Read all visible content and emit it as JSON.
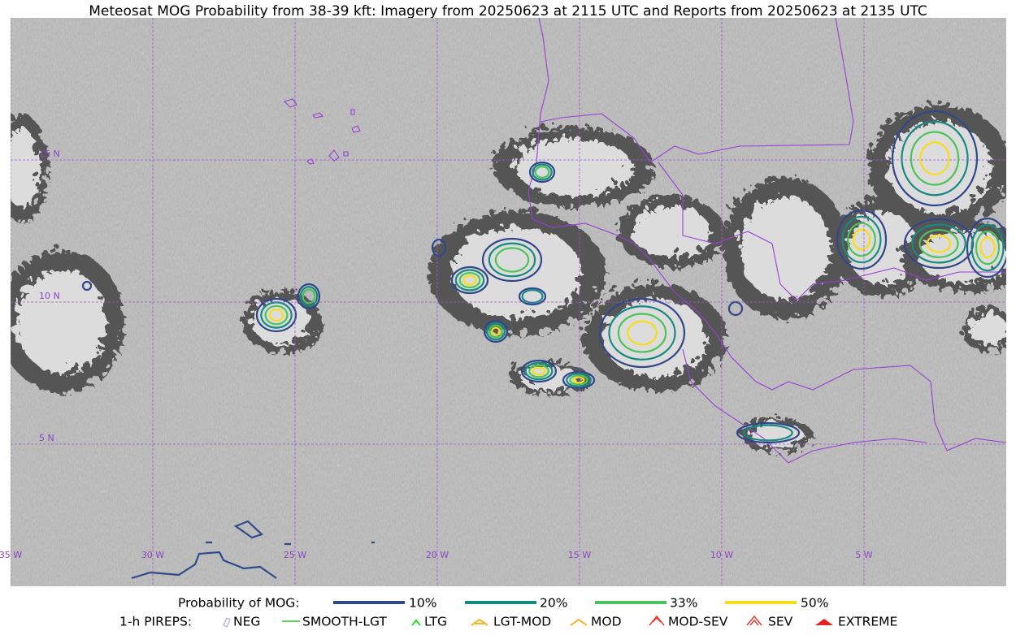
{
  "title": "Meteosat MOG Probability from 38-39 kft: Imagery from 20250623 at 2115 UTC and Reports from 20250623 at 2135 UTC",
  "map": {
    "longitude_labels": [
      "35 W",
      "30 W",
      "25 W",
      "20 W",
      "15 W",
      "10 W",
      "5 W"
    ],
    "latitude_labels": [
      "15 N",
      "10 N",
      "5 N"
    ]
  },
  "legend": {
    "probability": {
      "title": "Probability of MOG:",
      "entries": [
        "10%",
        "20%",
        "33%",
        "50%"
      ]
    },
    "pireps": {
      "title": "1-h PIREPS:",
      "entries": [
        "NEG",
        "SMOOTH-LGT",
        "LTG",
        "LGT-MOD",
        "MOD",
        "MOD-SEV",
        "SEV",
        "EXTREME"
      ]
    }
  }
}
